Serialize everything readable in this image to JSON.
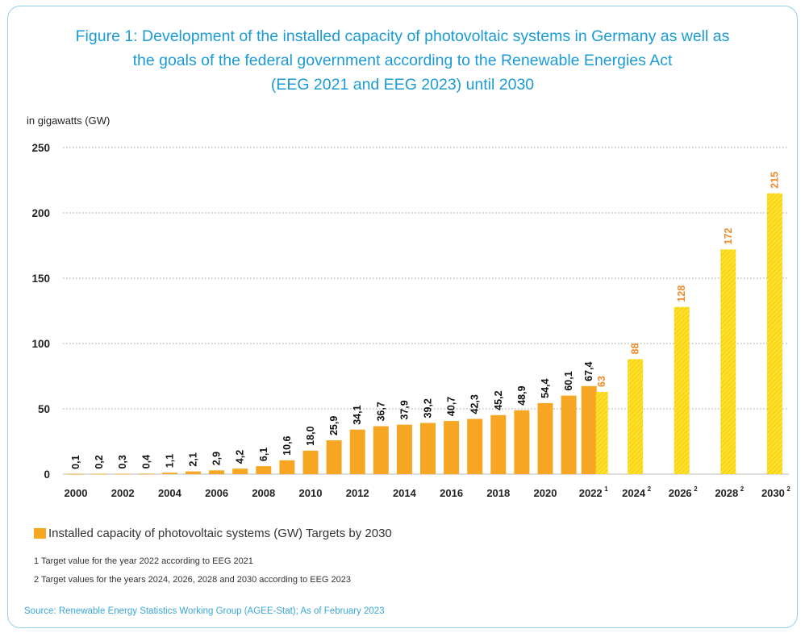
{
  "title": {
    "line1": "Figure 1: Development of the installed capacity of photovoltaic systems in Germany as well as",
    "line2": "the goals of the federal government according to the Renewable Energies Act",
    "line3": "(EEG 2021 and EEG 2023) until 2030"
  },
  "unit_label": "in gigawatts (GW)",
  "legend": {
    "text": "Installed capacity of photovoltaic systems (GW) Targets by 2030"
  },
  "footnotes": {
    "note1": "1 Target value for the year 2022 according to EEG 2021",
    "note2": "2 Target values for the years 2024, 2026, 2028 and 2030 according to EEG 2023"
  },
  "source": "Source: Renewable Energy Statistics Working Group (AGEE-Stat); As of February 2023",
  "colors": {
    "installed": "#f6a623",
    "target": "#fde02a",
    "target_label": "#f08a2b",
    "title": "#1a9bd6"
  },
  "chart_data": {
    "type": "bar",
    "ylabel": "in gigawatts (GW)",
    "ylim": [
      0,
      250
    ],
    "yticks": [
      "0",
      "50",
      "100",
      "150",
      "200",
      "250"
    ],
    "grid": true,
    "series": [
      {
        "name": "Installed capacity of photovoltaic systems (GW)",
        "points": [
          {
            "year": 2000,
            "value": 0.1,
            "label": "0,1"
          },
          {
            "year": 2001,
            "value": 0.2,
            "label": "0,2"
          },
          {
            "year": 2002,
            "value": 0.3,
            "label": "0,3"
          },
          {
            "year": 2003,
            "value": 0.4,
            "label": "0,4"
          },
          {
            "year": 2004,
            "value": 1.1,
            "label": "1,1"
          },
          {
            "year": 2005,
            "value": 2.1,
            "label": "2,1"
          },
          {
            "year": 2006,
            "value": 2.9,
            "label": "2,9"
          },
          {
            "year": 2007,
            "value": 4.2,
            "label": "4,2"
          },
          {
            "year": 2008,
            "value": 6.1,
            "label": "6,1"
          },
          {
            "year": 2009,
            "value": 10.6,
            "label": "10,6"
          },
          {
            "year": 2010,
            "value": 18.0,
            "label": "18,0"
          },
          {
            "year": 2011,
            "value": 25.9,
            "label": "25,9"
          },
          {
            "year": 2012,
            "value": 34.1,
            "label": "34,1"
          },
          {
            "year": 2013,
            "value": 36.7,
            "label": "36,7"
          },
          {
            "year": 2014,
            "value": 37.9,
            "label": "37,9"
          },
          {
            "year": 2015,
            "value": 39.2,
            "label": "39,2"
          },
          {
            "year": 2016,
            "value": 40.7,
            "label": "40,7"
          },
          {
            "year": 2017,
            "value": 42.3,
            "label": "42,3"
          },
          {
            "year": 2018,
            "value": 45.2,
            "label": "45,2"
          },
          {
            "year": 2019,
            "value": 48.9,
            "label": "48,9"
          },
          {
            "year": 2020,
            "value": 54.4,
            "label": "54,4"
          },
          {
            "year": 2021,
            "value": 60.1,
            "label": "60,1"
          },
          {
            "year": 2022,
            "value": 67.4,
            "label": "67,4"
          }
        ]
      },
      {
        "name": "Targets by 2030",
        "points": [
          {
            "year": 2022,
            "value": 63,
            "label": "63"
          },
          {
            "year": 2024,
            "value": 88,
            "label": "88"
          },
          {
            "year": 2026,
            "value": 128,
            "label": "128"
          },
          {
            "year": 2028,
            "value": 172,
            "label": "172"
          },
          {
            "year": 2030,
            "value": 215,
            "label": "215"
          }
        ]
      }
    ],
    "x_tick_labels": [
      {
        "year": 2000,
        "text": "2000",
        "sup": ""
      },
      {
        "year": 2002,
        "text": "2002",
        "sup": ""
      },
      {
        "year": 2004,
        "text": "2004",
        "sup": ""
      },
      {
        "year": 2006,
        "text": "2006",
        "sup": ""
      },
      {
        "year": 2008,
        "text": "2008",
        "sup": ""
      },
      {
        "year": 2010,
        "text": "2010",
        "sup": ""
      },
      {
        "year": 2012,
        "text": "2012",
        "sup": ""
      },
      {
        "year": 2014,
        "text": "2014",
        "sup": ""
      },
      {
        "year": 2016,
        "text": "2016",
        "sup": ""
      },
      {
        "year": 2018,
        "text": "2018",
        "sup": ""
      },
      {
        "year": 2020,
        "text": "2020",
        "sup": ""
      },
      {
        "year": 2022,
        "text": "2022",
        "sup": "1"
      },
      {
        "year": 2024,
        "text": "2024",
        "sup": "2"
      },
      {
        "year": 2026,
        "text": "2026",
        "sup": "2"
      },
      {
        "year": 2028,
        "text": "2028",
        "sup": "2"
      },
      {
        "year": 2030,
        "text": "2030",
        "sup": "2"
      }
    ]
  }
}
